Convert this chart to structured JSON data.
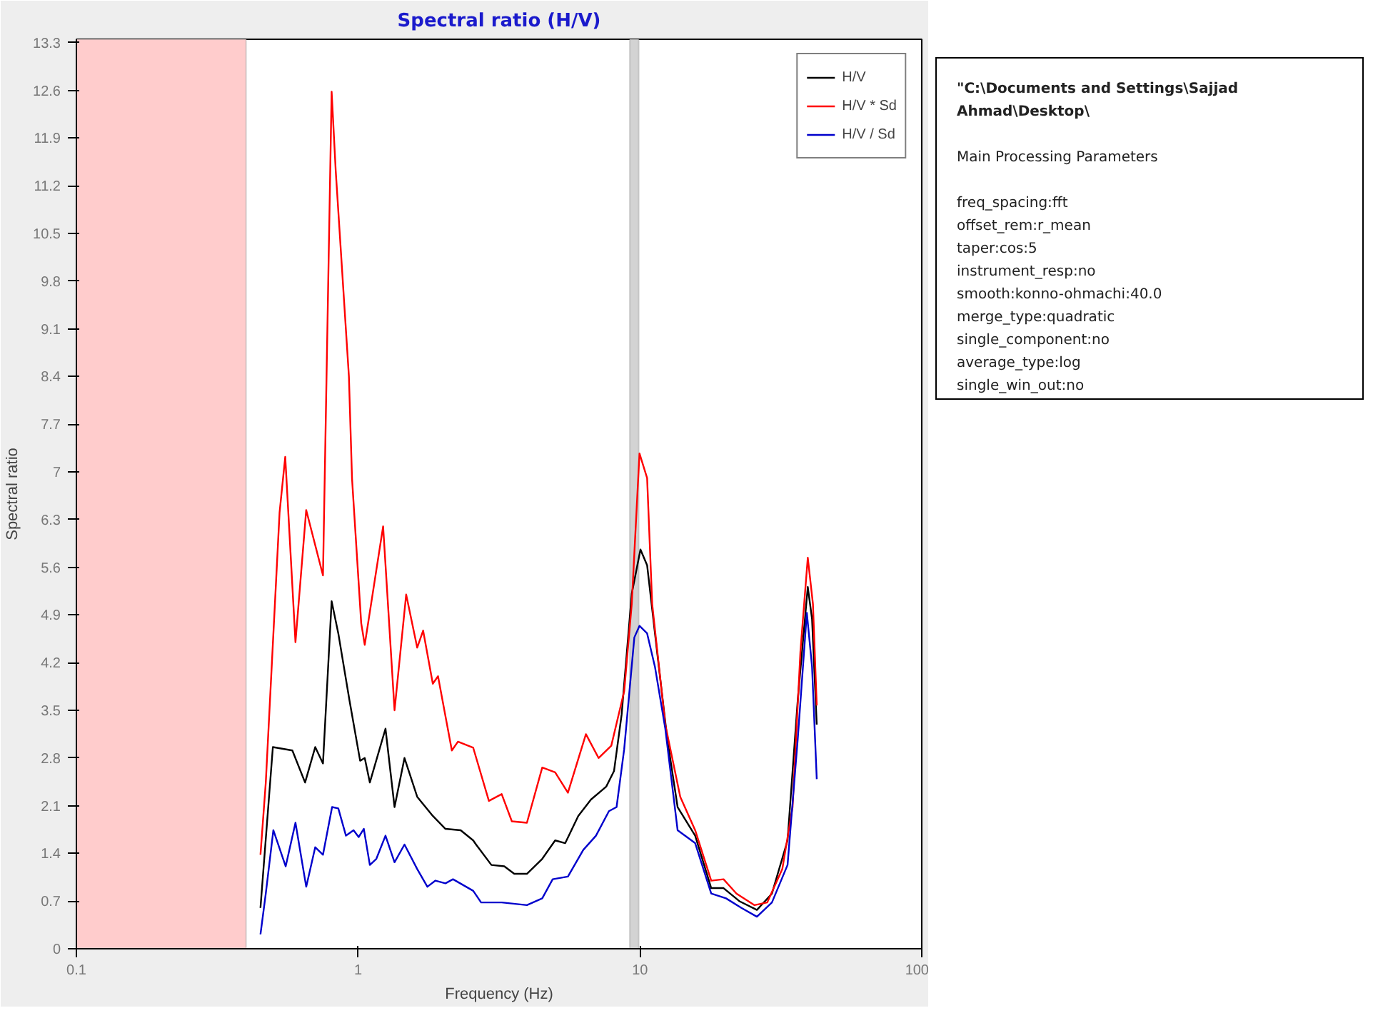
{
  "chart_data": {
    "type": "line",
    "title": "Spectral ratio (H/V)",
    "xlabel": "Frequency (Hz)",
    "ylabel": "Spectral ratio",
    "log": "x",
    "xlim": [
      0.1,
      100
    ],
    "xticks": [
      0.1,
      1,
      10,
      100
    ],
    "ylim": [
      0,
      13.35
    ],
    "yticks": [
      0,
      0.7,
      1.4,
      2.1,
      2.8,
      3.5,
      4.2,
      4.9,
      5.6,
      6.3,
      7,
      7.7,
      8.4,
      9.1,
      9.8,
      10.5,
      11.2,
      11.9,
      12.6,
      13.3
    ],
    "grid": false,
    "legend": "top right",
    "line_style": "solid",
    "marker": "none",
    "bands": [
      {
        "axis": "x",
        "from": 0.1,
        "to": 0.4,
        "color": "#ffcccc"
      },
      {
        "axis": "x",
        "from": 9.2,
        "to": 9.9,
        "color": "#d3d3d3"
      }
    ],
    "series": [
      {
        "name": "H/V",
        "color": "#000000",
        "x": [
          0.45,
          0.498,
          0.584,
          0.648,
          0.704,
          0.75,
          0.805,
          0.85,
          0.931,
          1.016,
          1.055,
          1.1,
          1.25,
          1.346,
          1.46,
          1.62,
          1.84,
          2.04,
          2.31,
          2.56,
          2.62,
          2.97,
          3.3,
          3.58,
          3.97,
          4.5,
          5.0,
          5.43,
          6.04,
          6.7,
          7.59,
          8.09,
          8.61,
          9.35,
          10.04,
          10.6,
          11.5,
          12.5,
          13.6,
          15.7,
          17.9,
          19.8,
          22.5,
          26.0,
          29.4,
          33.4,
          36.3,
          39.4,
          40.8,
          42.4
        ],
        "values": [
          0.6,
          2.96,
          2.91,
          2.44,
          2.96,
          2.72,
          5.1,
          4.63,
          3.65,
          2.76,
          2.8,
          2.44,
          3.23,
          2.08,
          2.8,
          2.23,
          1.95,
          1.76,
          1.74,
          1.59,
          1.53,
          1.23,
          1.21,
          1.1,
          1.1,
          1.32,
          1.59,
          1.55,
          1.95,
          2.19,
          2.38,
          2.61,
          3.44,
          5.21,
          5.86,
          5.63,
          4.36,
          3.08,
          2.08,
          1.66,
          0.89,
          0.89,
          0.7,
          0.57,
          0.81,
          1.59,
          3.65,
          5.31,
          4.84,
          3.29
        ]
      },
      {
        "name": "H/V * Sd",
        "color": "#ff0000",
        "x": [
          0.45,
          0.47,
          0.526,
          0.551,
          0.599,
          0.654,
          0.75,
          0.805,
          0.832,
          0.927,
          0.951,
          1.025,
          1.055,
          1.226,
          1.346,
          1.48,
          1.62,
          1.7,
          1.84,
          1.92,
          2.15,
          2.26,
          2.56,
          2.91,
          3.23,
          3.51,
          3.97,
          4.5,
          5.0,
          5.55,
          6.43,
          7.13,
          7.91,
          8.79,
          9.35,
          9.96,
          10.6,
          11.05,
          12.3,
          13.9,
          15.7,
          17.9,
          19.8,
          22.0,
          25.5,
          28.3,
          32.0,
          34.8,
          37.1,
          39.4,
          41.1,
          42.4
        ],
        "values": [
          1.38,
          2.44,
          6.4,
          7.22,
          4.5,
          6.44,
          5.48,
          12.58,
          11.43,
          8.4,
          6.9,
          4.78,
          4.46,
          6.2,
          3.5,
          5.2,
          4.42,
          4.67,
          3.89,
          4.0,
          2.91,
          3.04,
          2.95,
          2.17,
          2.27,
          1.87,
          1.85,
          2.66,
          2.59,
          2.29,
          3.15,
          2.8,
          2.98,
          3.78,
          5.06,
          7.27,
          6.91,
          5.06,
          3.29,
          2.23,
          1.74,
          1.0,
          1.02,
          0.81,
          0.64,
          0.68,
          1.17,
          2.08,
          4.36,
          5.74,
          5.06,
          3.57
        ]
      },
      {
        "name": "H/V / Sd",
        "color": "#0000cc",
        "x": [
          0.45,
          0.47,
          0.5,
          0.553,
          0.599,
          0.654,
          0.704,
          0.75,
          0.808,
          0.85,
          0.905,
          0.963,
          1.004,
          1.047,
          1.1,
          1.16,
          1.25,
          1.346,
          1.46,
          1.62,
          1.76,
          1.88,
          2.04,
          2.17,
          2.56,
          2.73,
          3.23,
          3.97,
          4.5,
          4.9,
          5.55,
          6.29,
          6.98,
          7.76,
          8.26,
          8.79,
          9.55,
          9.96,
          10.6,
          11.3,
          12.3,
          13.6,
          15.7,
          17.9,
          20.2,
          22.9,
          26.0,
          29.4,
          33.4,
          36.3,
          39.1,
          40.8,
          42.4
        ],
        "values": [
          0.21,
          0.81,
          1.74,
          1.21,
          1.85,
          0.91,
          1.49,
          1.38,
          2.08,
          2.06,
          1.66,
          1.74,
          1.64,
          1.76,
          1.23,
          1.32,
          1.66,
          1.27,
          1.53,
          1.17,
          0.91,
          1.0,
          0.96,
          1.02,
          0.85,
          0.68,
          0.68,
          0.64,
          0.74,
          1.02,
          1.06,
          1.45,
          1.66,
          2.02,
          2.08,
          2.93,
          4.57,
          4.74,
          4.63,
          4.14,
          3.23,
          1.74,
          1.55,
          0.81,
          0.74,
          0.6,
          0.47,
          0.68,
          1.23,
          3.08,
          4.93,
          4.14,
          2.49
        ]
      }
    ],
    "annotations": [
      "\"C:\\Documents and Settings\\Sajjad Ahmad\\Desktop\\",
      "Main Processing Parameters",
      "freq_spacing:fft",
      "offset_rem:r_mean",
      "taper:cos:5",
      "instrument_resp:no",
      "smooth:konno-ohmachi:40.0",
      "merge_type:quadratic",
      "single_component:no",
      "average_type:log",
      "single_win_out:no"
    ]
  }
}
